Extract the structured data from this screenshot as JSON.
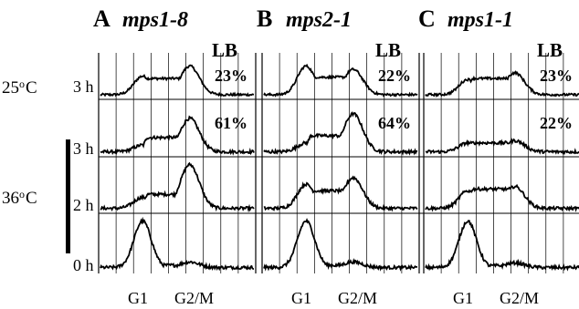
{
  "colors": {
    "trace": "#000000",
    "grid": "#000000",
    "background": "#ffffff"
  },
  "chart_data": {
    "type": "line",
    "description_axis": "DNA content histograms",
    "x_tick_labels": [
      "G1",
      "G2/M"
    ],
    "rows": [
      {
        "time": "3 h",
        "temperature": "25oC"
      },
      {
        "time": "3 h",
        "temperature": "36oC"
      },
      {
        "time": "2 h",
        "temperature": "36oC"
      },
      {
        "time": "0 h",
        "temperature": "36oC"
      }
    ],
    "temperatures": [
      {
        "base": "25",
        "sup": "o",
        "unit": "C"
      },
      {
        "base": "36",
        "sup": "o",
        "unit": "C"
      }
    ],
    "lb_label": "LB",
    "panels": [
      {
        "letter": "A",
        "strain": "mps1-8",
        "percents": [
          "23%",
          "61%",
          "",
          ""
        ],
        "histograms": [
          {
            "g1": 0.55,
            "g2": 0.85,
            "sub": 0.6
          },
          {
            "g1": 0.15,
            "g2": 0.75,
            "sub": 0.4
          },
          {
            "g1": 0.25,
            "g2": 1.0,
            "sub": 0.4
          },
          {
            "g1": 1.0,
            "g2": 0.12,
            "sub": 0.06
          }
        ]
      },
      {
        "letter": "B",
        "strain": "mps2-1",
        "percents": [
          "22%",
          "64%",
          "",
          ""
        ],
        "histograms": [
          {
            "g1": 0.85,
            "g2": 0.75,
            "sub": 0.65
          },
          {
            "g1": 0.2,
            "g2": 0.85,
            "sub": 0.45
          },
          {
            "g1": 0.55,
            "g2": 0.7,
            "sub": 0.5
          },
          {
            "g1": 1.0,
            "g2": 0.12,
            "sub": 0.06
          }
        ]
      },
      {
        "letter": "C",
        "strain": "mps1-1",
        "percents": [
          "23%",
          "22%",
          "",
          ""
        ],
        "histograms": [
          {
            "g1": 0.45,
            "g2": 0.65,
            "sub": 0.6
          },
          {
            "g1": 0.2,
            "g2": 0.25,
            "sub": 0.25
          },
          {
            "g1": 0.4,
            "g2": 0.5,
            "sub": 0.55
          },
          {
            "g1": 1.0,
            "g2": 0.1,
            "sub": 0.05
          }
        ]
      }
    ]
  }
}
